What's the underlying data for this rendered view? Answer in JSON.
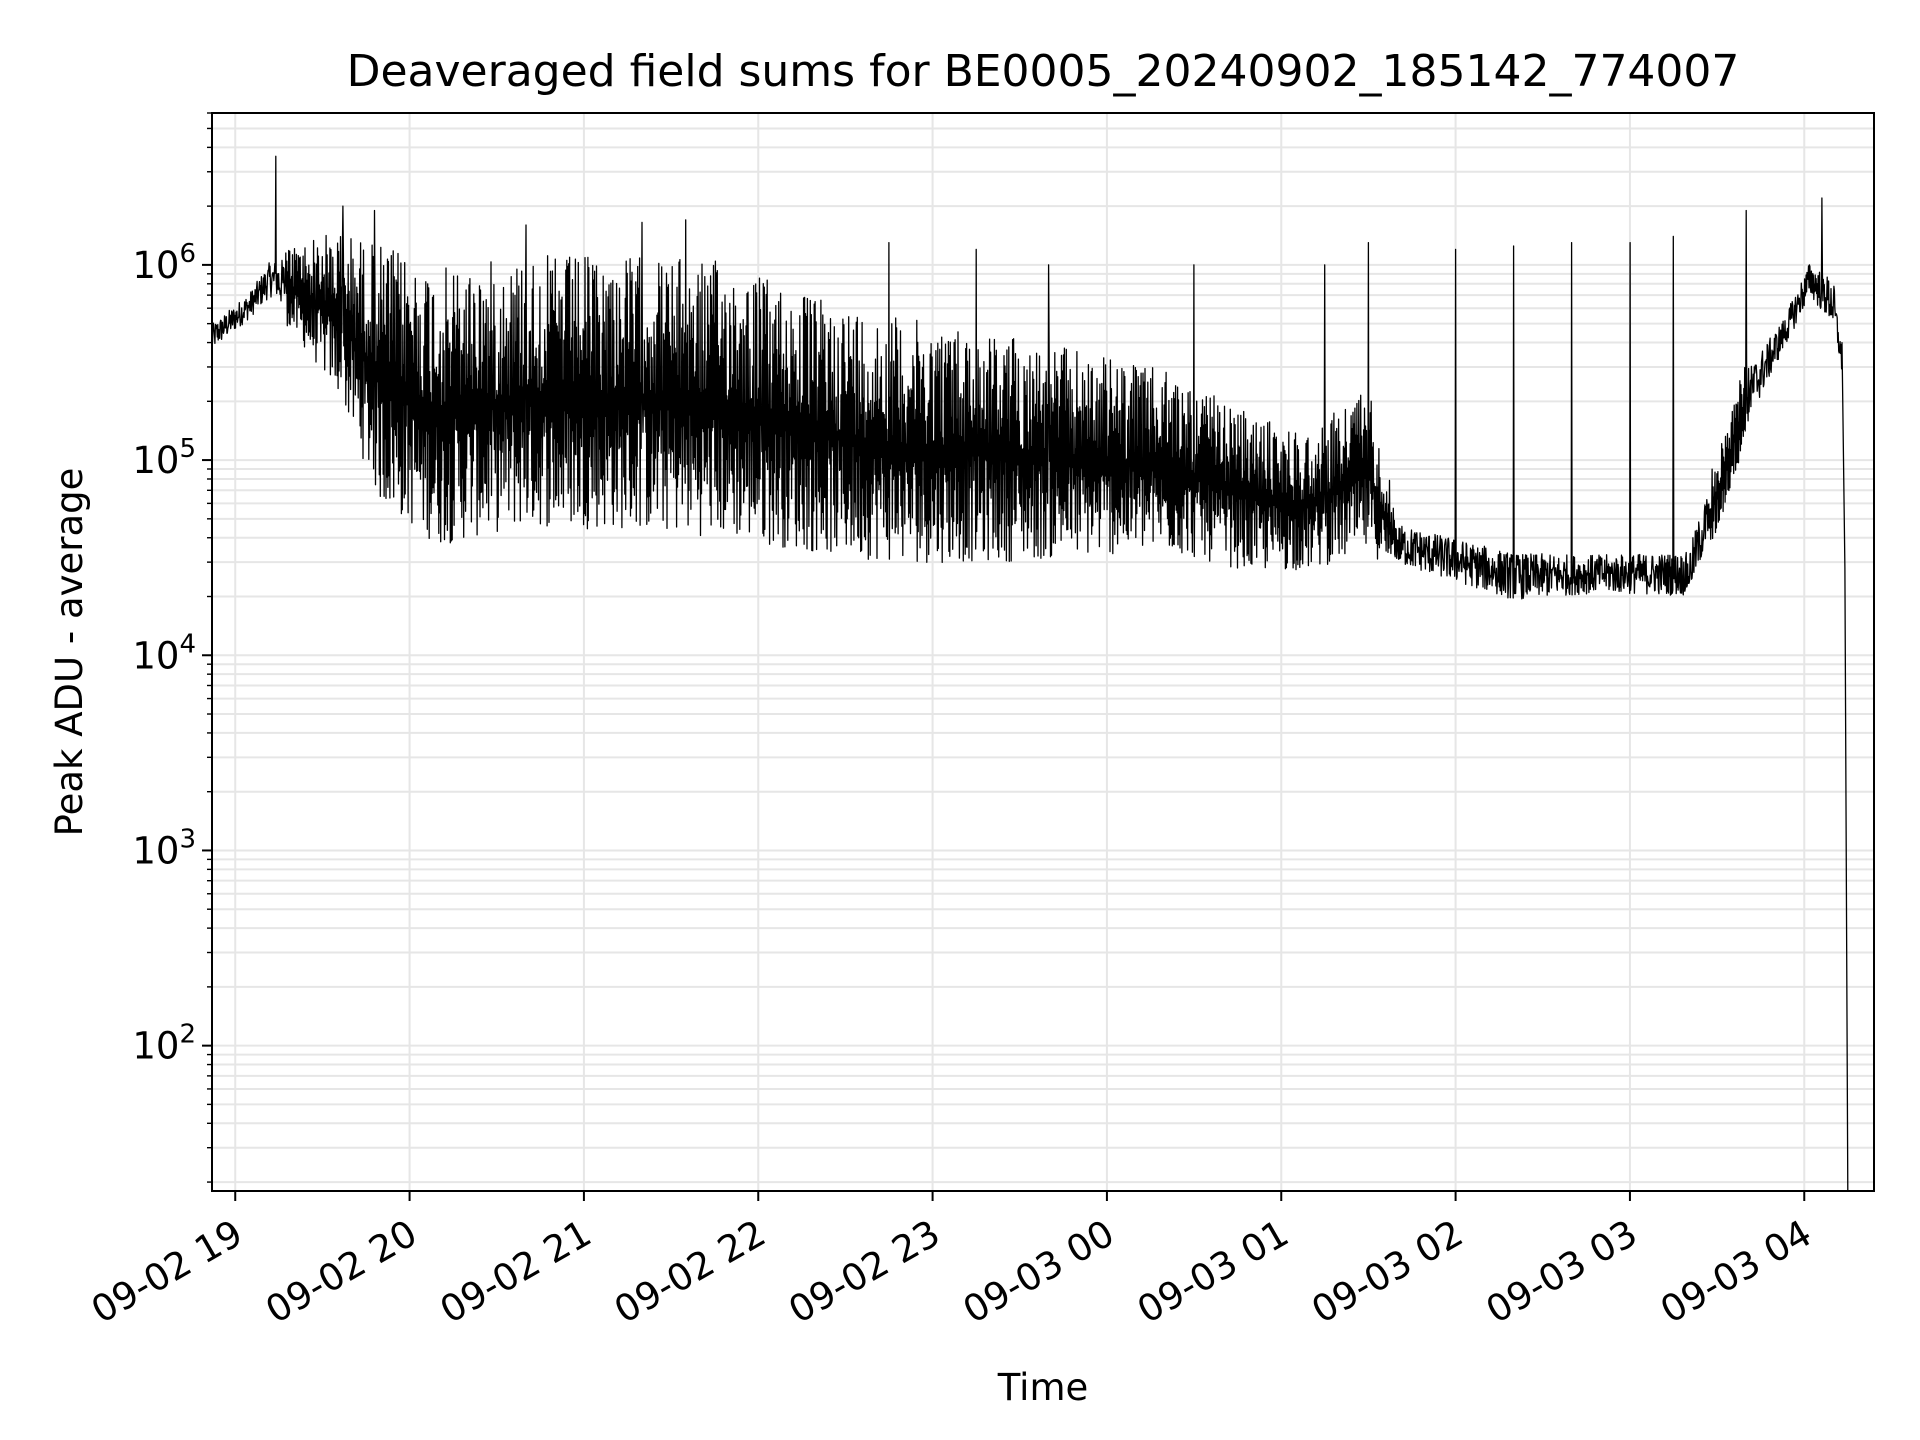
{
  "chart_data": {
    "type": "line",
    "title": "Deaveraged field sums for BE0005_20240902_185142_774007",
    "xlabel": "Time",
    "ylabel": "Peak ADU - average",
    "y_scale": "log",
    "ylim": [
      18,
      6000000
    ],
    "xlim": [
      "2024-09-02T18:52:00",
      "2024-09-03T04:24:00"
    ],
    "grid": true,
    "x_ticks": [
      {
        "t": "2024-09-02T19:00:00",
        "label": "09-02 19"
      },
      {
        "t": "2024-09-02T20:00:00",
        "label": "09-02 20"
      },
      {
        "t": "2024-09-02T21:00:00",
        "label": "09-02 21"
      },
      {
        "t": "2024-09-02T22:00:00",
        "label": "09-02 22"
      },
      {
        "t": "2024-09-02T23:00:00",
        "label": "09-02 23"
      },
      {
        "t": "2024-09-03T00:00:00",
        "label": "09-03 00"
      },
      {
        "t": "2024-09-03T01:00:00",
        "label": "09-03 01"
      },
      {
        "t": "2024-09-03T02:00:00",
        "label": "09-03 02"
      },
      {
        "t": "2024-09-03T03:00:00",
        "label": "09-03 03"
      },
      {
        "t": "2024-09-03T04:00:00",
        "label": "09-03 04"
      }
    ],
    "y_ticks": [
      {
        "value": 100,
        "base": "10",
        "exp": "2"
      },
      {
        "value": 1000,
        "base": "10",
        "exp": "3"
      },
      {
        "value": 10000,
        "base": "10",
        "exp": "4"
      },
      {
        "value": 100000,
        "base": "10",
        "exp": "5"
      },
      {
        "value": 1000000,
        "base": "10",
        "exp": "6"
      }
    ],
    "line_color": "#000000",
    "series": [
      {
        "envelope": [
          {
            "t": "2024-09-02T18:52:00",
            "low": 330000,
            "high": 550000
          },
          {
            "t": "2024-09-02T19:05:00",
            "low": 480000,
            "high": 800000
          },
          {
            "t": "2024-09-02T19:12:00",
            "low": 600000,
            "high": 1200000
          },
          {
            "t": "2024-09-02T19:20:00",
            "low": 420000,
            "high": 1400000
          },
          {
            "t": "2024-09-02T19:35:00",
            "low": 200000,
            "high": 1800000
          },
          {
            "t": "2024-09-02T19:50:00",
            "low": 50000,
            "high": 1700000
          },
          {
            "t": "2024-09-02T20:10:00",
            "low": 30000,
            "high": 1300000
          },
          {
            "t": "2024-09-02T20:40:00",
            "low": 38000,
            "high": 1500000
          },
          {
            "t": "2024-09-02T21:20:00",
            "low": 36000,
            "high": 1500000
          },
          {
            "t": "2024-09-02T21:50:00",
            "low": 33000,
            "high": 1400000
          },
          {
            "t": "2024-09-02T22:20:00",
            "low": 28000,
            "high": 900000
          },
          {
            "t": "2024-09-02T22:50:00",
            "low": 25000,
            "high": 700000
          },
          {
            "t": "2024-09-02T23:30:00",
            "low": 26000,
            "high": 550000
          },
          {
            "t": "2024-09-03T00:20:00",
            "low": 30000,
            "high": 350000
          },
          {
            "t": "2024-09-03T00:50:00",
            "low": 24000,
            "high": 200000
          },
          {
            "t": "2024-09-03T01:10:00",
            "low": 25000,
            "high": 160000
          },
          {
            "t": "2024-09-03T01:30:00",
            "low": 30000,
            "high": 300000
          },
          {
            "t": "2024-09-03T01:40:00",
            "low": 25000,
            "high": 55000
          },
          {
            "t": "2024-09-03T02:20:00",
            "low": 16000,
            "high": 40000
          },
          {
            "t": "2024-09-03T02:50:00",
            "low": 18000,
            "high": 38000
          },
          {
            "t": "2024-09-03T03:20:00",
            "low": 17000,
            "high": 40000
          },
          {
            "t": "2024-09-03T03:30:00",
            "low": 40000,
            "high": 120000
          },
          {
            "t": "2024-09-03T03:40:00",
            "low": 120000,
            "high": 350000
          },
          {
            "t": "2024-09-03T03:53:00",
            "low": 330000,
            "high": 600000
          },
          {
            "t": "2024-09-03T04:02:00",
            "low": 600000,
            "high": 1200000
          },
          {
            "t": "2024-09-03T04:10:00",
            "low": 400000,
            "high": 1000000
          },
          {
            "t": "2024-09-03T04:13:00",
            "low": 250000,
            "high": 400000
          }
        ],
        "spikes": [
          {
            "t": "2024-09-02T19:14:00",
            "value": 3600000
          },
          {
            "t": "2024-09-02T19:37:00",
            "value": 2000000
          },
          {
            "t": "2024-09-02T19:48:00",
            "value": 1900000
          },
          {
            "t": "2024-09-02T20:40:00",
            "value": 1600000
          },
          {
            "t": "2024-09-02T21:20:00",
            "value": 1650000
          },
          {
            "t": "2024-09-02T21:35:00",
            "value": 1700000
          },
          {
            "t": "2024-09-02T22:45:00",
            "value": 1300000
          },
          {
            "t": "2024-09-02T23:15:00",
            "value": 1200000
          },
          {
            "t": "2024-09-02T23:40:00",
            "value": 1000000
          },
          {
            "t": "2024-09-03T00:30:00",
            "value": 1000000
          },
          {
            "t": "2024-09-03T01:15:00",
            "value": 1000000
          },
          {
            "t": "2024-09-03T01:30:00",
            "value": 1300000
          },
          {
            "t": "2024-09-03T02:00:00",
            "value": 1200000
          },
          {
            "t": "2024-09-03T02:20:00",
            "value": 1250000
          },
          {
            "t": "2024-09-03T02:40:00",
            "value": 1300000
          },
          {
            "t": "2024-09-03T03:00:00",
            "value": 1300000
          },
          {
            "t": "2024-09-03T03:15:00",
            "value": 1400000
          },
          {
            "t": "2024-09-03T03:40:00",
            "value": 1900000
          },
          {
            "t": "2024-09-03T04:06:00",
            "value": 2200000
          }
        ],
        "dropoff": [
          {
            "t": "2024-09-03T04:13:00",
            "value": 400000
          },
          {
            "t": "2024-09-03T04:14:00",
            "value": 28000
          },
          {
            "t": "2024-09-03T04:15:00",
            "value": 18
          }
        ]
      }
    ]
  }
}
